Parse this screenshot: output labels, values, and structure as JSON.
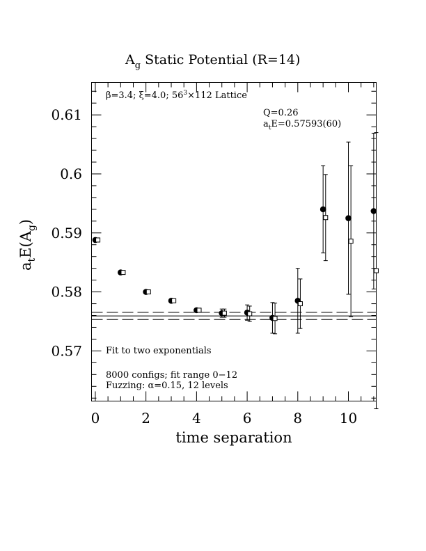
{
  "chart_data": {
    "type": "scatter",
    "title": "A_g Static Potential (R=14)",
    "title_parts": {
      "main": "A",
      "sub": "g",
      "rest": " Static Potential (R=14)"
    },
    "xlabel": "time separation",
    "ylabel": "a_tE(A_g)",
    "ylabel_parts": {
      "a": "a",
      "t": "t",
      "mid": "E(A",
      "g": "g",
      "close": ")"
    },
    "xlim": [
      -0.15,
      11.1
    ],
    "ylim": [
      0.5615,
      0.6155
    ],
    "xticks": [
      0,
      2,
      4,
      6,
      8,
      10
    ],
    "xtick_labels": [
      "0",
      "2",
      "4",
      "6",
      "8",
      "10"
    ],
    "yticks": [
      0.57,
      0.58,
      0.59,
      0.6,
      0.61
    ],
    "ytick_labels": [
      "0.57",
      "0.58",
      "0.59",
      "0.6",
      "0.61"
    ],
    "grid": false,
    "series": [
      {
        "marker": "filled-circle",
        "x": [
          0,
          1,
          2,
          3,
          4,
          5,
          6,
          7,
          8,
          9,
          10,
          11
        ],
        "y": [
          0.5888,
          0.5833,
          0.58,
          0.5785,
          0.5769,
          0.5764,
          0.5765,
          0.5756,
          0.5785,
          0.594,
          0.5925,
          0.5937
        ],
        "yerr": [
          0.0002,
          0.0003,
          0.0003,
          0.0003,
          0.0003,
          0.0007,
          0.0013,
          0.0026,
          0.0055,
          0.0074,
          0.0129,
          0.0132
        ]
      },
      {
        "marker": "open-square",
        "x": [
          0.1,
          1.1,
          2.1,
          3.1,
          4.1,
          5.1,
          6.1,
          7.1,
          8.1,
          9.1,
          10.1,
          11.1
        ],
        "y": [
          0.5888,
          0.5833,
          0.58,
          0.5785,
          0.5769,
          0.5764,
          0.5763,
          0.5755,
          0.578,
          0.5926,
          0.5886,
          0.5836
        ],
        "yerr": [
          0.0002,
          0.0003,
          0.0003,
          0.0003,
          0.0003,
          0.0007,
          0.0013,
          0.0026,
          0.0042,
          0.0073,
          0.0128,
          0.0234
        ]
      }
    ],
    "fit": {
      "value": 0.57593,
      "error": 0.0006,
      "xrange": [
        -0.15,
        11.1
      ]
    },
    "annotations": {
      "lattice": "β=3.4; ξ=4.0; 56³×112 Lattice",
      "lattice_parts": {
        "a": "β=3.4; ξ=4.0; 56",
        "sup": "3",
        "b": "×112 Lattice"
      },
      "q": "Q=0.26",
      "energy": "a_tE=0.57593(60)",
      "energy_parts": {
        "a": "a",
        "t": "t",
        "rest": "E=0.57593(60)"
      },
      "fit_label": "Fit to two exponentials",
      "configs": "8000 configs; fit range 0−12",
      "fuzzing": "Fuzzing: α=0.15, 12 levels"
    }
  }
}
